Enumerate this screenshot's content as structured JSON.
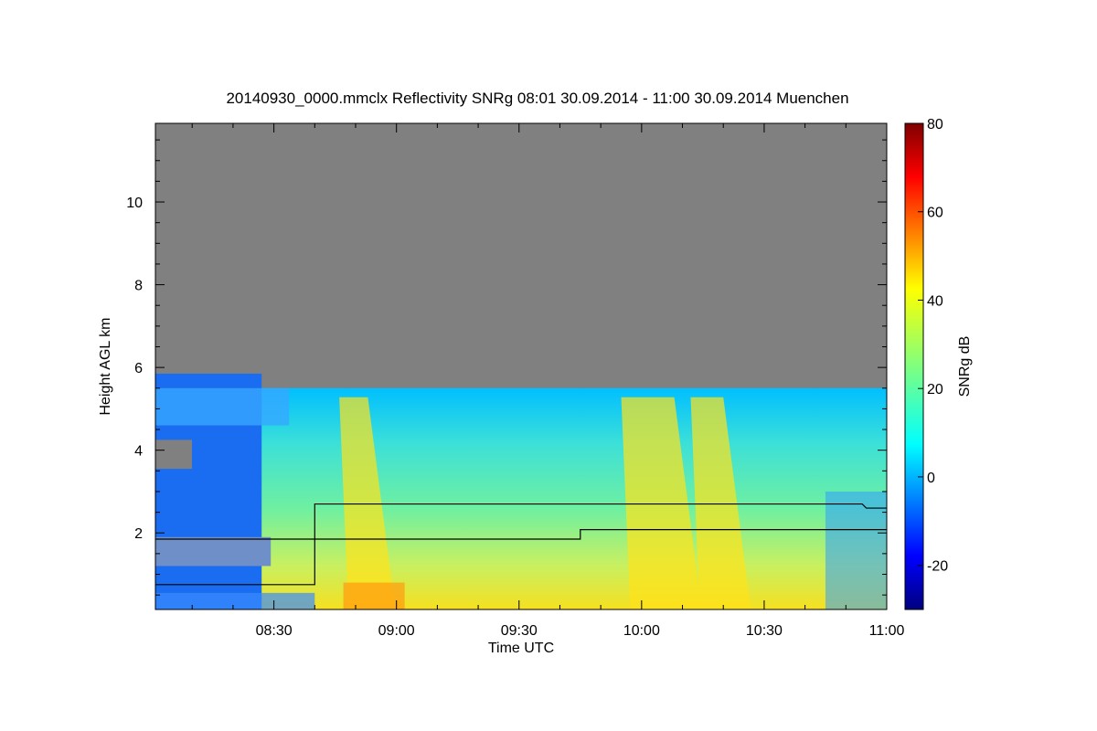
{
  "chart_data": {
    "type": "heatmap",
    "title": "20140930_0000.mmclx Reflectivity SNRg   08:01 30.09.2014 - 11:00 30.09.2014 Muenchen",
    "xlabel": "Time UTC",
    "ylabel": "Height AGL km",
    "colorbar_label": "SNRg dB",
    "x_range": [
      "08:01",
      "11:00"
    ],
    "y_range": [
      0.15,
      11.9
    ],
    "x_ticks": [
      "08:30",
      "09:00",
      "09:30",
      "10:00",
      "10:30",
      "11:00"
    ],
    "y_ticks": [
      2,
      4,
      6,
      8,
      10
    ],
    "colorbar_range": [
      -30,
      80
    ],
    "colorbar_ticks": [
      -20,
      0,
      20,
      40,
      60,
      80
    ],
    "colormap": "jet",
    "no_data_color": "#808080",
    "cloud_top_km": 5.5,
    "lines": [
      {
        "points": [
          [
            "08:01",
            0.75
          ],
          [
            "08:40",
            0.75
          ],
          [
            "08:40",
            2.7
          ],
          [
            "09:14",
            2.7
          ],
          [
            "10:54",
            2.7
          ],
          [
            "10:55",
            2.6
          ],
          [
            "11:00",
            2.6
          ]
        ]
      },
      {
        "points": [
          [
            "08:01",
            1.85
          ],
          [
            "09:45",
            1.85
          ],
          [
            "09:45",
            2.08
          ],
          [
            "11:00",
            2.08
          ]
        ]
      }
    ]
  }
}
